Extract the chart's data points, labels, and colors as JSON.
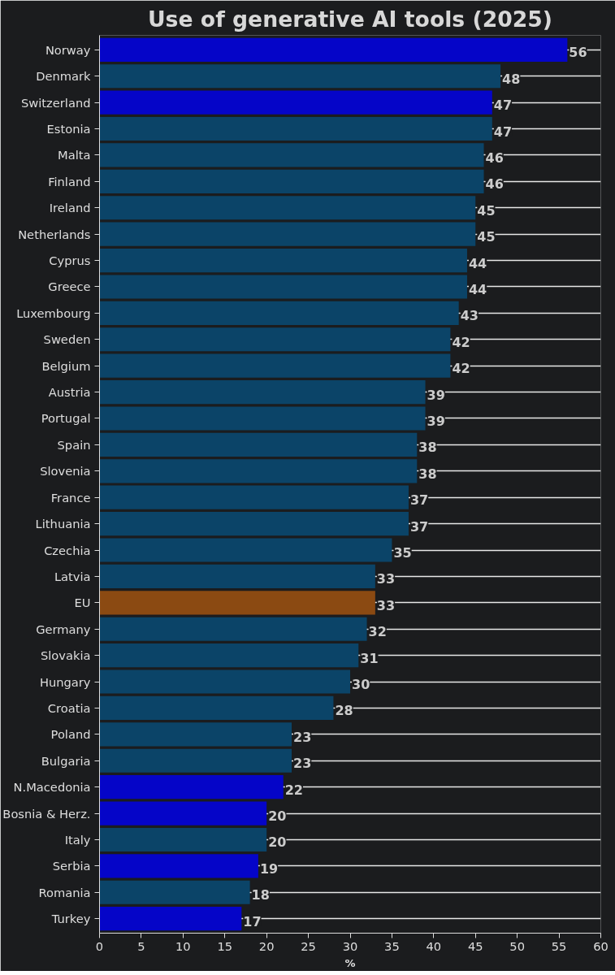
{
  "chart_data": {
    "type": "bar",
    "orientation": "horizontal",
    "title": "Use of generative AI tools (2025)",
    "xlabel": "%",
    "categories": [
      "Norway",
      "Denmark",
      "Switzerland",
      "Estonia",
      "Malta",
      "Finland",
      "Ireland",
      "Netherlands",
      "Cyprus",
      "Greece",
      "Luxembourg",
      "Sweden",
      "Belgium",
      "Austria",
      "Portugal",
      "Spain",
      "Slovenia",
      "France",
      "Lithuania",
      "Czechia",
      "Latvia",
      "EU",
      "Germany",
      "Slovakia",
      "Hungary",
      "Croatia",
      "Poland",
      "Bulgaria",
      "N.Macedonia",
      "Bosnia & Herz.",
      "Italy",
      "Serbia",
      "Romania",
      "Turkey"
    ],
    "values": [
      56,
      48,
      47,
      47,
      46,
      46,
      45,
      45,
      44,
      44,
      43,
      42,
      42,
      39,
      39,
      38,
      38,
      37,
      37,
      35,
      33,
      33,
      32,
      31,
      30,
      28,
      23,
      23,
      22,
      20,
      20,
      19,
      18,
      17
    ],
    "colors": [
      "#0505c8",
      "#0b4468",
      "#0505c8",
      "#0b4468",
      "#0b4468",
      "#0b4468",
      "#0b4468",
      "#0b4468",
      "#0b4468",
      "#0b4468",
      "#0b4468",
      "#0b4468",
      "#0b4468",
      "#0b4468",
      "#0b4468",
      "#0b4468",
      "#0b4468",
      "#0b4468",
      "#0b4468",
      "#0b4468",
      "#0b4468",
      "#8b4a12",
      "#0b4468",
      "#0b4468",
      "#0b4468",
      "#0b4468",
      "#0b4468",
      "#0b4468",
      "#0505c8",
      "#0505c8",
      "#0b4468",
      "#0505c8",
      "#0b4468",
      "#0505c8"
    ],
    "xlim": [
      0,
      60
    ],
    "xticks": [
      0,
      5,
      10,
      15,
      20,
      25,
      30,
      35,
      40,
      45,
      50,
      55,
      60
    ],
    "grid": "y",
    "data_labels": true
  }
}
